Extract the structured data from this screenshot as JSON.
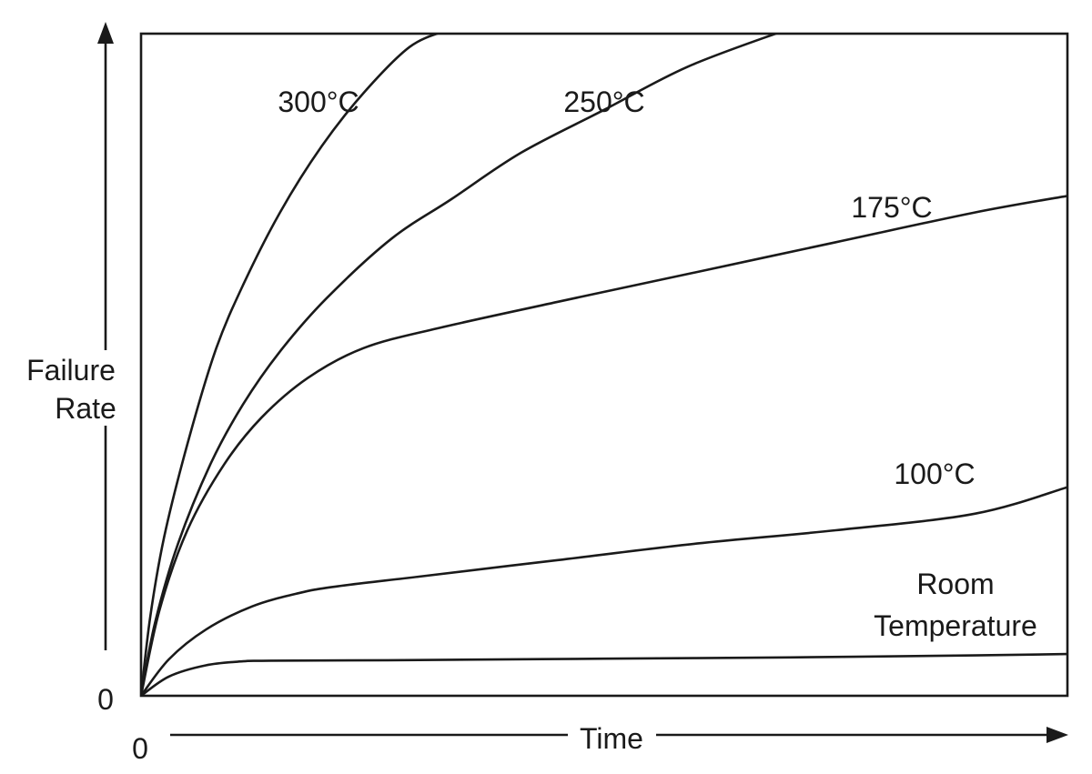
{
  "chart_data": {
    "type": "line",
    "title": "",
    "xlabel": "Time",
    "ylabel_lines": [
      "Failure",
      "Rate"
    ],
    "x_origin_label": "0",
    "y_origin_label": "0",
    "xlim": [
      0,
      100
    ],
    "ylim": [
      0,
      100
    ],
    "grid": false,
    "legend": "inline labels next to curves",
    "series": [
      {
        "name": "300°C",
        "label": "300°C",
        "x": [
          0,
          1,
          2.5,
          5,
          8,
          11,
          15,
          19.5,
          24,
          29,
          33
        ],
        "y": [
          0,
          12,
          24,
          38,
          52,
          62,
          73,
          83,
          91,
          98,
          100.5
        ]
      },
      {
        "name": "250°C",
        "label": "250°C",
        "x": [
          0,
          1.5,
          4,
          7.5,
          11,
          15,
          20,
          27,
          33.5,
          41,
          50,
          59,
          69.5
        ],
        "y": [
          0,
          11,
          23,
          35,
          44,
          52,
          60,
          69,
          75,
          82,
          88.5,
          95,
          100.5
        ]
      },
      {
        "name": "175°C",
        "label": "175°C",
        "x": [
          0,
          2,
          5,
          9,
          13,
          18,
          24,
          32,
          45,
          60,
          75,
          90,
          100
        ],
        "y": [
          0,
          13,
          25,
          35,
          42,
          48,
          52.5,
          55.5,
          59.5,
          64,
          68.5,
          73,
          75.5
        ]
      },
      {
        "name": "100°C",
        "label": "100°C",
        "x": [
          0,
          3,
          7,
          12,
          17,
          21,
          30,
          45,
          60,
          75,
          90,
          100
        ],
        "y": [
          0,
          5.5,
          10,
          13.5,
          15.5,
          16.5,
          18,
          20.5,
          23,
          25,
          27.5,
          31.5
        ]
      },
      {
        "name": "Room Temperature",
        "label_lines": [
          "Room",
          "Temperature"
        ],
        "x": [
          0,
          3,
          7,
          11,
          14,
          30,
          50,
          70,
          90,
          100
        ],
        "y": [
          0,
          2.9,
          4.6,
          5.2,
          5.3,
          5.4,
          5.6,
          5.8,
          6.1,
          6.3
        ]
      }
    ]
  }
}
